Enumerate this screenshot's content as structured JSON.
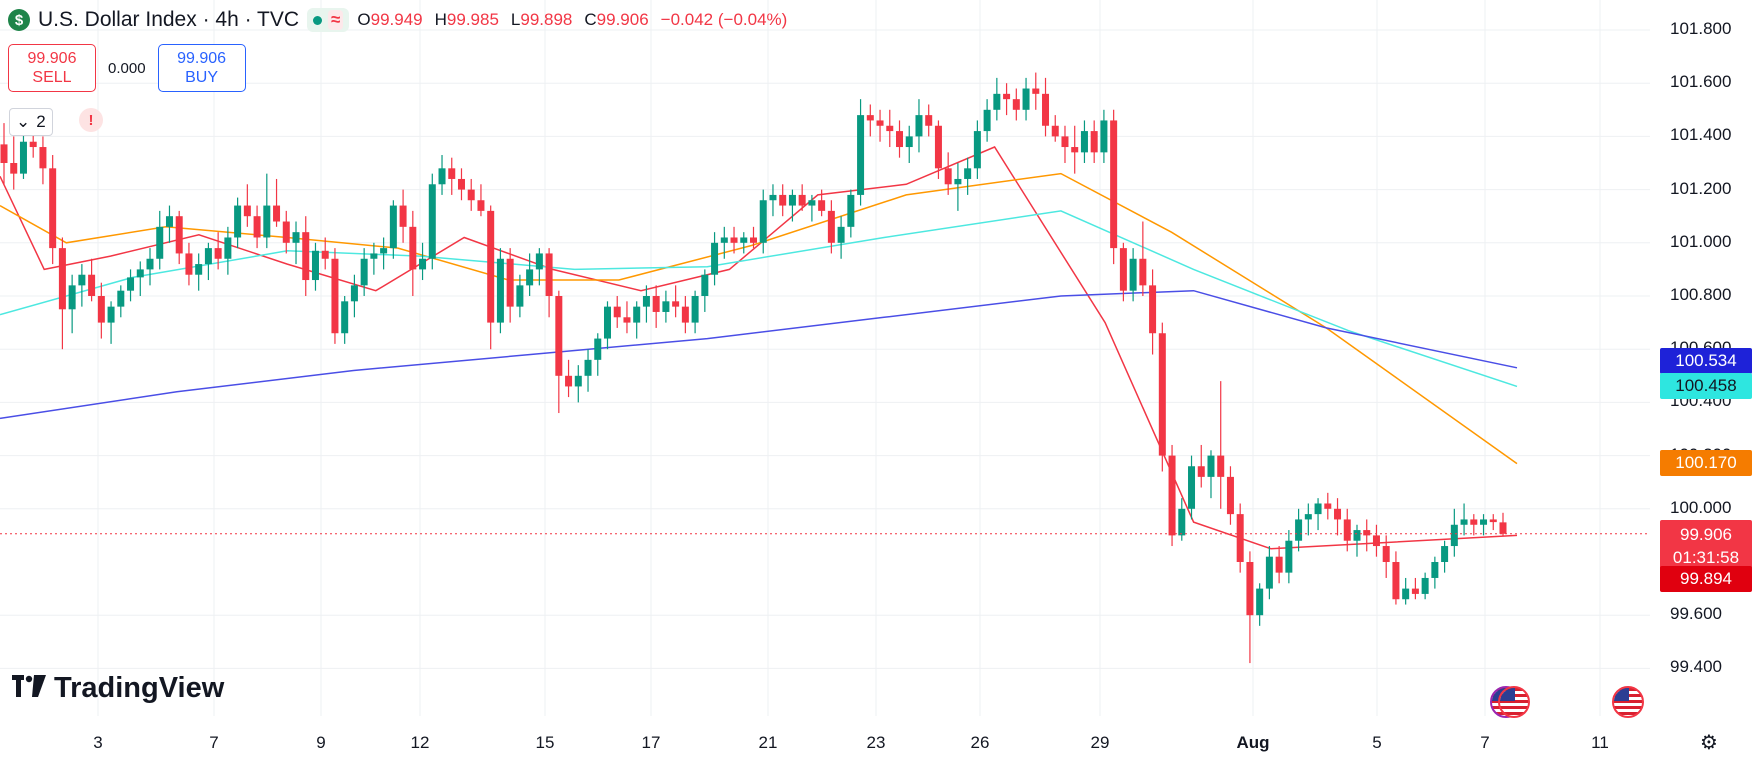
{
  "header": {
    "symbol_icon": "$",
    "title": "U.S. Dollar Index · 4h · TVC",
    "status_icon": "market-open-dot-icon",
    "indicator_icon": "≈",
    "ohlc": [
      {
        "key": "O",
        "value": "99.949"
      },
      {
        "key": "H",
        "value": "99.985"
      },
      {
        "key": "L",
        "value": "99.898"
      },
      {
        "key": "C",
        "value": "99.906"
      },
      {
        "key": "",
        "value": "−0.042 (−0.04%)"
      }
    ]
  },
  "trade": {
    "sell_price": "99.906",
    "sell_label": "SELL",
    "spread": "0.000",
    "buy_price": "99.906",
    "buy_label": "BUY"
  },
  "collapse": {
    "icon": "chevron-down-icon",
    "count": "2"
  },
  "alert": {
    "icon": "!"
  },
  "logo": {
    "mark": "TV",
    "text": "TradingView"
  },
  "price_scale": {
    "ticks": [
      "101.800",
      "101.600",
      "101.400",
      "101.200",
      "101.000",
      "100.800",
      "100.600",
      "100.400",
      "100.200",
      "100.000",
      "99.600",
      "99.400"
    ],
    "labels": {
      "ma_slow": "100.534",
      "ma_mid": "100.458",
      "ma_orange": "100.170",
      "last_price": "99.906",
      "countdown": "01:31:58",
      "low_price": "99.894"
    }
  },
  "time_scale": {
    "ticks": [
      {
        "label": "3",
        "bold": false
      },
      {
        "label": "7",
        "bold": false
      },
      {
        "label": "9",
        "bold": false
      },
      {
        "label": "12",
        "bold": false
      },
      {
        "label": "15",
        "bold": false
      },
      {
        "label": "17",
        "bold": false
      },
      {
        "label": "21",
        "bold": false
      },
      {
        "label": "23",
        "bold": false
      },
      {
        "label": "26",
        "bold": false
      },
      {
        "label": "29",
        "bold": false
      },
      {
        "label": "Aug",
        "bold": true
      },
      {
        "label": "5",
        "bold": false
      },
      {
        "label": "7",
        "bold": false
      },
      {
        "label": "11",
        "bold": false
      }
    ]
  },
  "colors": {
    "up": "#089981",
    "down": "#f23645",
    "ma_red": "#f23645",
    "ma_orange": "#ff9800",
    "ma_cyan": "#4de8e0",
    "ma_blue": "#4a4ee6",
    "grid": "#eef0f3",
    "text": "#131722"
  },
  "chart_data": {
    "type": "candlestick",
    "ylim": [
      99.3,
      101.9
    ],
    "grid": true,
    "last_price": 99.906,
    "candles": [
      [
        101.37,
        101.45,
        101.22,
        101.3
      ],
      [
        101.3,
        101.4,
        101.2,
        101.26
      ],
      [
        101.26,
        101.42,
        101.24,
        101.38
      ],
      [
        101.38,
        101.46,
        101.32,
        101.36
      ],
      [
        101.36,
        101.4,
        101.22,
        101.28
      ],
      [
        101.28,
        101.33,
        100.92,
        100.98
      ],
      [
        100.98,
        101.02,
        100.6,
        100.75
      ],
      [
        100.75,
        100.88,
        100.66,
        100.84
      ],
      [
        100.84,
        100.92,
        100.76,
        100.88
      ],
      [
        100.88,
        100.94,
        100.78,
        100.8
      ],
      [
        100.8,
        100.85,
        100.64,
        100.7
      ],
      [
        100.7,
        100.78,
        100.62,
        100.76
      ],
      [
        100.76,
        100.84,
        100.72,
        100.82
      ],
      [
        100.82,
        100.9,
        100.78,
        100.87
      ],
      [
        100.87,
        100.93,
        100.8,
        100.9
      ],
      [
        100.9,
        100.98,
        100.84,
        100.94
      ],
      [
        100.94,
        101.12,
        100.9,
        101.06
      ],
      [
        101.06,
        101.14,
        101.0,
        101.1
      ],
      [
        101.1,
        101.12,
        100.92,
        100.96
      ],
      [
        100.96,
        101.0,
        100.84,
        100.88
      ],
      [
        100.88,
        100.96,
        100.82,
        100.92
      ],
      [
        100.92,
        101.0,
        100.86,
        100.98
      ],
      [
        100.98,
        101.04,
        100.9,
        100.94
      ],
      [
        100.94,
        101.06,
        100.88,
        101.02
      ],
      [
        101.02,
        101.17,
        100.98,
        101.14
      ],
      [
        101.14,
        101.22,
        101.06,
        101.1
      ],
      [
        101.1,
        101.14,
        100.98,
        101.02
      ],
      [
        101.02,
        101.26,
        100.98,
        101.14
      ],
      [
        101.14,
        101.24,
        101.06,
        101.08
      ],
      [
        101.08,
        101.12,
        100.96,
        101.0
      ],
      [
        101.0,
        101.08,
        100.92,
        101.04
      ],
      [
        101.04,
        101.1,
        100.8,
        100.86
      ],
      [
        100.86,
        101.0,
        100.82,
        100.97
      ],
      [
        100.97,
        101.02,
        100.9,
        100.94
      ],
      [
        100.94,
        100.98,
        100.62,
        100.66
      ],
      [
        100.66,
        100.8,
        100.62,
        100.78
      ],
      [
        100.78,
        100.88,
        100.72,
        100.84
      ],
      [
        100.84,
        100.98,
        100.8,
        100.94
      ],
      [
        100.94,
        101.0,
        100.88,
        100.96
      ],
      [
        100.96,
        101.02,
        100.9,
        100.98
      ],
      [
        100.98,
        101.16,
        100.94,
        101.14
      ],
      [
        101.14,
        101.2,
        101.0,
        101.06
      ],
      [
        101.06,
        101.12,
        100.8,
        100.9
      ],
      [
        100.9,
        101.0,
        100.86,
        100.94
      ],
      [
        100.94,
        101.26,
        100.9,
        101.22
      ],
      [
        101.22,
        101.33,
        101.18,
        101.28
      ],
      [
        101.28,
        101.32,
        101.18,
        101.24
      ],
      [
        101.24,
        101.28,
        101.16,
        101.2
      ],
      [
        101.2,
        101.24,
        101.12,
        101.16
      ],
      [
        101.16,
        101.22,
        101.1,
        101.12
      ],
      [
        101.12,
        101.14,
        100.6,
        100.7
      ],
      [
        100.7,
        100.98,
        100.66,
        100.94
      ],
      [
        100.94,
        100.98,
        100.7,
        100.76
      ],
      [
        100.76,
        100.88,
        100.72,
        100.84
      ],
      [
        100.84,
        100.96,
        100.8,
        100.9
      ],
      [
        100.9,
        100.98,
        100.84,
        100.96
      ],
      [
        100.96,
        100.98,
        100.72,
        100.8
      ],
      [
        100.8,
        100.82,
        100.36,
        100.5
      ],
      [
        100.5,
        100.56,
        100.42,
        100.46
      ],
      [
        100.46,
        100.54,
        100.4,
        100.5
      ],
      [
        100.5,
        100.6,
        100.44,
        100.56
      ],
      [
        100.56,
        100.66,
        100.5,
        100.64
      ],
      [
        100.64,
        100.78,
        100.6,
        100.76
      ],
      [
        100.76,
        100.8,
        100.68,
        100.72
      ],
      [
        100.72,
        100.78,
        100.66,
        100.7
      ],
      [
        100.7,
        100.78,
        100.64,
        100.76
      ],
      [
        100.76,
        100.84,
        100.7,
        100.8
      ],
      [
        100.8,
        100.84,
        100.68,
        100.74
      ],
      [
        100.74,
        100.82,
        100.7,
        100.78
      ],
      [
        100.78,
        100.84,
        100.72,
        100.76
      ],
      [
        100.76,
        100.8,
        100.66,
        100.7
      ],
      [
        100.7,
        100.82,
        100.66,
        100.8
      ],
      [
        100.8,
        100.9,
        100.74,
        100.88
      ],
      [
        100.88,
        101.04,
        100.84,
        101.0
      ],
      [
        101.0,
        101.06,
        100.94,
        101.02
      ],
      [
        101.02,
        101.06,
        100.96,
        101.0
      ],
      [
        101.0,
        101.04,
        100.96,
        101.02
      ],
      [
        101.02,
        101.06,
        100.98,
        101.0
      ],
      [
        101.0,
        101.2,
        100.96,
        101.16
      ],
      [
        101.16,
        101.22,
        101.1,
        101.18
      ],
      [
        101.18,
        101.22,
        101.1,
        101.14
      ],
      [
        101.14,
        101.2,
        101.08,
        101.18
      ],
      [
        101.18,
        101.22,
        101.12,
        101.14
      ],
      [
        101.14,
        101.18,
        101.08,
        101.16
      ],
      [
        101.16,
        101.2,
        101.1,
        101.12
      ],
      [
        101.12,
        101.16,
        100.96,
        101.0
      ],
      [
        101.0,
        101.1,
        100.94,
        101.06
      ],
      [
        101.06,
        101.2,
        101.02,
        101.18
      ],
      [
        101.18,
        101.54,
        101.14,
        101.48
      ],
      [
        101.48,
        101.52,
        101.4,
        101.46
      ],
      [
        101.46,
        101.5,
        101.38,
        101.44
      ],
      [
        101.44,
        101.5,
        101.36,
        101.42
      ],
      [
        101.42,
        101.46,
        101.32,
        101.36
      ],
      [
        101.36,
        101.44,
        101.3,
        101.4
      ],
      [
        101.4,
        101.54,
        101.34,
        101.48
      ],
      [
        101.48,
        101.52,
        101.4,
        101.44
      ],
      [
        101.44,
        101.46,
        101.24,
        101.28
      ],
      [
        101.28,
        101.34,
        101.18,
        101.22
      ],
      [
        101.22,
        101.3,
        101.12,
        101.24
      ],
      [
        101.24,
        101.32,
        101.18,
        101.28
      ],
      [
        101.28,
        101.46,
        101.24,
        101.42
      ],
      [
        101.42,
        101.54,
        101.38,
        101.5
      ],
      [
        101.5,
        101.62,
        101.46,
        101.56
      ],
      [
        101.56,
        101.6,
        101.48,
        101.54
      ],
      [
        101.54,
        101.58,
        101.46,
        101.5
      ],
      [
        101.5,
        101.62,
        101.46,
        101.58
      ],
      [
        101.58,
        101.64,
        101.5,
        101.56
      ],
      [
        101.56,
        101.62,
        101.4,
        101.44
      ],
      [
        101.44,
        101.48,
        101.38,
        101.4
      ],
      [
        101.4,
        101.44,
        101.3,
        101.36
      ],
      [
        101.36,
        101.44,
        101.26,
        101.34
      ],
      [
        101.34,
        101.46,
        101.3,
        101.42
      ],
      [
        101.42,
        101.46,
        101.3,
        101.34
      ],
      [
        101.34,
        101.5,
        101.3,
        101.46
      ],
      [
        101.46,
        101.5,
        100.92,
        100.98
      ],
      [
        100.98,
        101.0,
        100.78,
        100.82
      ],
      [
        100.82,
        100.98,
        100.78,
        100.94
      ],
      [
        100.94,
        101.08,
        100.8,
        100.84
      ],
      [
        100.84,
        100.9,
        100.58,
        100.66
      ],
      [
        100.66,
        100.7,
        100.14,
        100.2
      ],
      [
        100.2,
        100.24,
        99.86,
        99.9
      ],
      [
        99.9,
        100.04,
        99.88,
        100.0
      ],
      [
        100.0,
        100.2,
        99.96,
        100.16
      ],
      [
        100.16,
        100.24,
        100.08,
        100.12
      ],
      [
        100.12,
        100.22,
        100.04,
        100.2
      ],
      [
        100.2,
        100.48,
        100.0,
        100.12
      ],
      [
        100.12,
        100.16,
        99.94,
        99.98
      ],
      [
        99.98,
        100.02,
        99.76,
        99.8
      ],
      [
        99.8,
        99.84,
        99.42,
        99.6
      ],
      [
        99.6,
        99.72,
        99.56,
        99.7
      ],
      [
        99.7,
        99.86,
        99.66,
        99.82
      ],
      [
        99.82,
        99.86,
        99.72,
        99.76
      ],
      [
        99.76,
        99.92,
        99.72,
        99.88
      ],
      [
        99.88,
        100.0,
        99.84,
        99.96
      ],
      [
        99.96,
        100.02,
        99.9,
        99.98
      ],
      [
        99.98,
        100.04,
        99.92,
        100.02
      ],
      [
        100.02,
        100.06,
        99.96,
        100.0
      ],
      [
        100.0,
        100.04,
        99.9,
        99.96
      ],
      [
        99.96,
        100.0,
        99.84,
        99.88
      ],
      [
        99.88,
        99.94,
        99.82,
        99.92
      ],
      [
        99.92,
        99.96,
        99.84,
        99.9
      ],
      [
        99.9,
        99.94,
        99.82,
        99.86
      ],
      [
        99.86,
        99.9,
        99.74,
        99.8
      ],
      [
        99.8,
        99.84,
        99.64,
        99.66
      ],
      [
        99.66,
        99.74,
        99.64,
        99.7
      ],
      [
        99.7,
        99.74,
        99.66,
        99.68
      ],
      [
        99.68,
        99.76,
        99.66,
        99.74
      ],
      [
        99.74,
        99.82,
        99.7,
        99.8
      ],
      [
        99.8,
        99.88,
        99.76,
        99.86
      ],
      [
        99.86,
        100.0,
        99.82,
        99.94
      ],
      [
        99.94,
        100.02,
        99.9,
        99.96
      ],
      [
        99.96,
        99.98,
        99.9,
        99.94
      ],
      [
        99.94,
        99.98,
        99.9,
        99.96
      ],
      [
        99.96,
        99.98,
        99.92,
        99.95
      ],
      [
        99.949,
        99.985,
        99.898,
        99.906
      ]
    ],
    "moving_averages": [
      {
        "color": "#f23645",
        "values": [
          101.25,
          100.9,
          100.95,
          101.03,
          100.92,
          100.82,
          101.02,
          100.9,
          100.82,
          100.9,
          101.18,
          101.22,
          101.36,
          100.7,
          99.95,
          99.85,
          99.9
        ]
      },
      {
        "color": "#ff9800",
        "values": [
          101.14,
          101.0,
          101.06,
          101.02,
          100.98,
          100.86,
          100.86,
          100.99,
          101.18,
          101.26,
          101.04,
          100.68,
          100.17
        ]
      },
      {
        "color": "#4de8e0",
        "values": [
          100.73,
          100.87,
          100.97,
          100.95,
          100.9,
          100.91,
          101.02,
          101.12,
          100.9,
          100.67,
          100.46
        ]
      },
      {
        "color": "#4a4ee6",
        "values": [
          100.34,
          100.44,
          100.52,
          100.58,
          100.64,
          100.72,
          100.8,
          100.82,
          100.68,
          100.53
        ]
      }
    ]
  }
}
